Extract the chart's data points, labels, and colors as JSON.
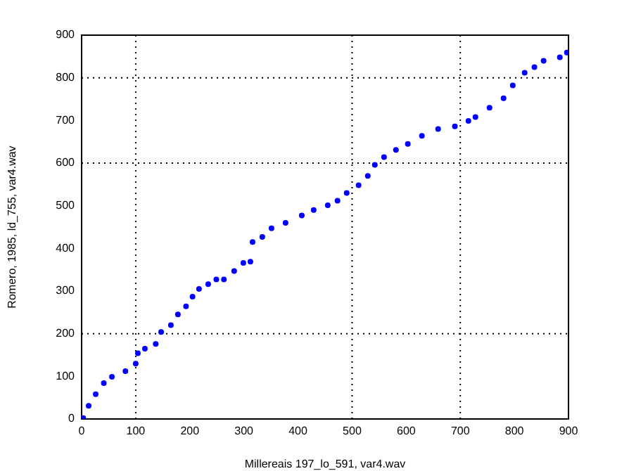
{
  "chart_data": {
    "type": "scatter",
    "xlabel": "Millereais 197_lo_591, var4.wav",
    "ylabel": "Romero, 1985, ld_755, var4.wav",
    "series": [
      {
        "color": "#0000ff",
        "x": [
          3,
          13,
          26,
          41,
          56,
          81,
          100,
          104,
          117,
          137,
          147,
          165,
          178,
          193,
          205,
          217,
          234,
          249,
          263,
          282,
          299,
          312,
          316,
          334,
          351,
          377,
          407,
          429,
          455,
          473,
          490,
          512,
          529,
          542,
          559,
          581,
          603,
          629,
          659,
          690,
          715,
          728,
          754,
          780,
          797,
          819,
          837,
          854,
          884,
          897
        ],
        "values": [
          2,
          31,
          58,
          84,
          99,
          112,
          130,
          154,
          165,
          176,
          204,
          220,
          245,
          264,
          287,
          305,
          316,
          327,
          327,
          347,
          366,
          369,
          415,
          427,
          447,
          460,
          477,
          490,
          501,
          512,
          530,
          548,
          570,
          596,
          614,
          631,
          645,
          664,
          680,
          686,
          699,
          708,
          730,
          752,
          782,
          812,
          825,
          840,
          848,
          859
        ]
      }
    ],
    "xlim": [
      0,
      900
    ],
    "ylim": [
      0,
      900
    ],
    "xticks": [
      0,
      100,
      200,
      300,
      400,
      500,
      600,
      700,
      800,
      900
    ],
    "yticks": [
      0,
      100,
      200,
      300,
      400,
      500,
      600,
      700,
      800,
      900
    ],
    "grid": false,
    "legend": false,
    "marker": "circle",
    "ref_lines": [
      {
        "axis": "x",
        "value": 100,
        "color": "#000000",
        "line_style": "dotted"
      },
      {
        "axis": "x",
        "value": 500,
        "color": "#000000",
        "line_style": "dotted"
      },
      {
        "axis": "x",
        "value": 700,
        "color": "#000000",
        "line_style": "dotted"
      },
      {
        "axis": "y",
        "value": 200,
        "color": "#000000",
        "line_style": "dotted"
      },
      {
        "axis": "y",
        "value": 600,
        "color": "#000000",
        "line_style": "dotted"
      },
      {
        "axis": "y",
        "value": 800,
        "color": "#000000",
        "line_style": "dotted"
      }
    ]
  }
}
